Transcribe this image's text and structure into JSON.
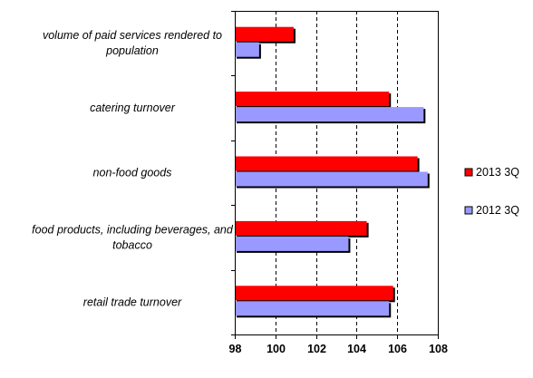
{
  "chart_data": {
    "type": "bar",
    "orientation": "horizontal",
    "categories": [
      "volume of paid services rendered to population",
      "catering turnover",
      "non-food goods",
      "food products, including beverages, and tobacco",
      "retail trade turnover"
    ],
    "category_lines": [
      [
        "volume of paid services rendered to",
        "population"
      ],
      [
        "catering turnover"
      ],
      [
        "non-food goods"
      ],
      [
        "food products, including beverages, and",
        "tobacco"
      ],
      [
        "retail trade turnover"
      ]
    ],
    "series": [
      {
        "name": "2013 3Q",
        "color": "#ff0000",
        "values": [
          100.9,
          105.6,
          107.0,
          104.5,
          105.8
        ]
      },
      {
        "name": "2012 3Q",
        "color": "#9999ff",
        "values": [
          99.2,
          107.3,
          107.5,
          103.6,
          105.6
        ]
      }
    ],
    "xlim": [
      98,
      108
    ],
    "xticks": [
      98,
      100,
      102,
      104,
      106,
      108
    ],
    "xtick_labels": [
      "98",
      "100",
      "102",
      "104",
      "106",
      "108"
    ],
    "grid": "vertical dashed",
    "legend_position": "right",
    "title": "",
    "xlabel": "",
    "ylabel": ""
  }
}
